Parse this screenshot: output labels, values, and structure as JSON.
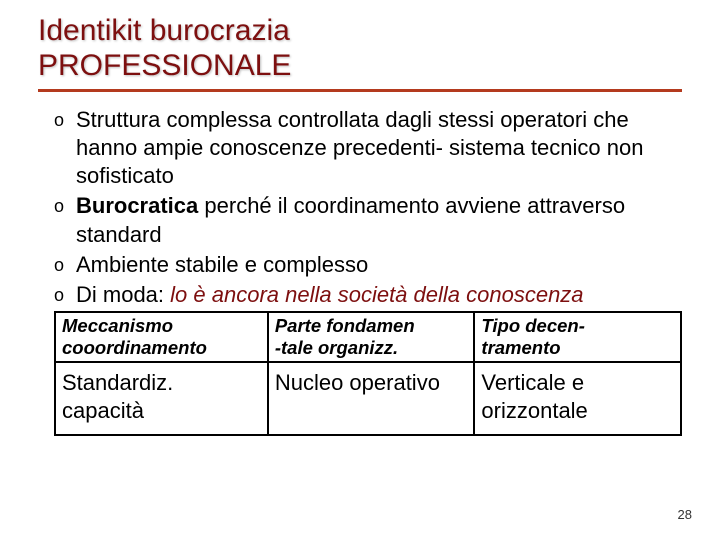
{
  "colors": {
    "title_color": "#7d0f0f",
    "rule_color": "#b43a1e",
    "italic_color": "#7d0f0f",
    "text_color": "#000000"
  },
  "title": {
    "line1": "Identikit burocrazia",
    "line2": "PROFESSIONALE"
  },
  "bullets": [
    {
      "plain_pre": "Struttura complessa controllata dagli stessi operatori che hanno ampie conoscenze precedenti- sistema tecnico non sofisticato"
    },
    {
      "bold_lead": "Burocratica",
      "plain_post": " perché il coordinamento avviene attraverso standard"
    },
    {
      "plain_pre": "Ambiente stabile e complesso"
    },
    {
      "plain_pre": "Di moda: ",
      "italic_tail": "lo è ancora nella società della conoscenza"
    }
  ],
  "table": {
    "columns": [
      {
        "l1": "Meccanismo",
        "l2": "cooordinamento",
        "width": "34%"
      },
      {
        "l1": "Parte fondamen",
        "l2": "-tale organizz.",
        "width": "33%"
      },
      {
        "l1": "Tipo decen-",
        "l2": "tramento",
        "width": "33%"
      }
    ],
    "row": [
      "Standardiz. capacità",
      "Nucleo operativo",
      "Verticale e orizzontale"
    ]
  },
  "page_number": "28"
}
